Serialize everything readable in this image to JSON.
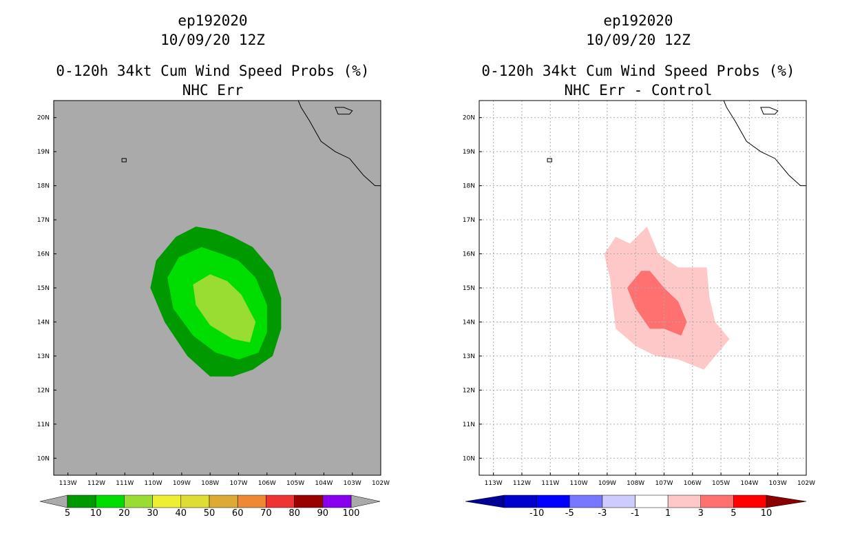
{
  "chart_data": [
    {
      "type": "contour_map",
      "title_lines": [
        "ep192020",
        "10/09/20 12Z",
        "0-120h 34kt Cum Wind Speed Probs (%)",
        "NHC Err"
      ],
      "x_ticks": [
        "113W",
        "112W",
        "111W",
        "110W",
        "109W",
        "108W",
        "107W",
        "106W",
        "105W",
        "104W",
        "103W",
        "102W"
      ],
      "y_ticks": [
        "20N",
        "19N",
        "18N",
        "17N",
        "16N",
        "15N",
        "14N",
        "13N",
        "12N",
        "11N",
        "10N"
      ],
      "xlim": [
        -113.5,
        -102.0
      ],
      "ylim": [
        9.5,
        20.5
      ],
      "background": "#aaaaaa",
      "grid": false,
      "colorbar": {
        "labels": [
          "5",
          "10",
          "20",
          "30",
          "40",
          "50",
          "60",
          "70",
          "80",
          "90",
          "100"
        ],
        "colors": [
          "#009900",
          "#00dd00",
          "#99dd33",
          "#eeee33",
          "#dddd33",
          "#ddaa33",
          "#ee8833",
          "#ee3333",
          "#990000",
          "#8800ee"
        ],
        "end_color": "#aaaaaa"
      },
      "contours": [
        {
          "level": "5-10",
          "color": "#009900",
          "points": [
            [
              -108.5,
              16.8
            ],
            [
              -107.8,
              16.7
            ],
            [
              -107.2,
              16.5
            ],
            [
              -106.5,
              16.2
            ],
            [
              -105.8,
              15.5
            ],
            [
              -105.5,
              14.7
            ],
            [
              -105.5,
              13.8
            ],
            [
              -105.8,
              13.0
            ],
            [
              -106.5,
              12.6
            ],
            [
              -107.2,
              12.4
            ],
            [
              -108.0,
              12.4
            ],
            [
              -108.8,
              13.0
            ],
            [
              -109.6,
              14.0
            ],
            [
              -110.1,
              15.0
            ],
            [
              -109.9,
              15.8
            ],
            [
              -109.2,
              16.5
            ]
          ]
        },
        {
          "level": "10-20",
          "color": "#00dd00",
          "points": [
            [
              -108.3,
              16.2
            ],
            [
              -107.6,
              16.0
            ],
            [
              -107.0,
              15.8
            ],
            [
              -106.4,
              15.3
            ],
            [
              -106.0,
              14.5
            ],
            [
              -106.0,
              13.7
            ],
            [
              -106.3,
              13.1
            ],
            [
              -107.0,
              12.9
            ],
            [
              -107.8,
              13.1
            ],
            [
              -108.6,
              13.6
            ],
            [
              -109.3,
              14.4
            ],
            [
              -109.5,
              15.3
            ],
            [
              -109.1,
              15.9
            ]
          ]
        },
        {
          "level": "20-30",
          "color": "#99dd33",
          "points": [
            [
              -108.0,
              15.4
            ],
            [
              -107.4,
              15.2
            ],
            [
              -106.9,
              14.8
            ],
            [
              -106.4,
              14.0
            ],
            [
              -106.6,
              13.4
            ],
            [
              -107.2,
              13.5
            ],
            [
              -108.0,
              13.9
            ],
            [
              -108.5,
              14.5
            ],
            [
              -108.6,
              15.1
            ]
          ]
        }
      ],
      "coastlines": [
        {
          "name": "mexico",
          "points": [
            [
              -104.9,
              20.5
            ],
            [
              -104.8,
              20.3
            ],
            [
              -104.5,
              19.9
            ],
            [
              -104.1,
              19.3
            ],
            [
              -103.6,
              19.0
            ],
            [
              -103.1,
              18.8
            ],
            [
              -102.6,
              18.3
            ],
            [
              -102.2,
              18.0
            ],
            [
              -102.0,
              18.0
            ]
          ]
        },
        {
          "name": "islas-marias",
          "points": [
            [
              -103.6,
              20.3
            ],
            [
              -103.3,
              20.3
            ],
            [
              -103.0,
              20.2
            ],
            [
              -103.1,
              20.1
            ],
            [
              -103.5,
              20.1
            ]
          ]
        },
        {
          "name": "socorro",
          "points": [
            [
              -111.1,
              18.8
            ],
            [
              -110.95,
              18.8
            ],
            [
              -110.95,
              18.7
            ],
            [
              -111.1,
              18.7
            ]
          ]
        }
      ]
    },
    {
      "type": "contour_map",
      "title_lines": [
        "ep192020",
        "10/09/20 12Z",
        "0-120h 34kt Cum Wind Speed Probs (%)",
        "NHC Err - Control"
      ],
      "x_ticks": [
        "113W",
        "112W",
        "111W",
        "110W",
        "109W",
        "108W",
        "107W",
        "106W",
        "105W",
        "104W",
        "103W",
        "102W"
      ],
      "y_ticks": [
        "20N",
        "19N",
        "18N",
        "17N",
        "16N",
        "15N",
        "14N",
        "13N",
        "12N",
        "11N",
        "10N"
      ],
      "xlim": [
        -113.5,
        -102.0
      ],
      "ylim": [
        9.5,
        20.5
      ],
      "background": "#ffffff",
      "grid": true,
      "colorbar": {
        "labels": [
          "-10",
          "-5",
          "-3",
          "-1",
          "1",
          "3",
          "5",
          "10"
        ],
        "colors": [
          "#0000cc",
          "#0000ff",
          "#7777ff",
          "#ccccff",
          "#ffffff",
          "#ffc8c8",
          "#ff7070",
          "#ff0000"
        ],
        "left_end_color": "#000099",
        "right_end_color": "#880000"
      },
      "contours": [
        {
          "level": "1-3",
          "color": "#ffc8c8",
          "points": [
            [
              -109.1,
              16.0
            ],
            [
              -108.7,
              16.5
            ],
            [
              -108.2,
              16.3
            ],
            [
              -107.6,
              16.8
            ],
            [
              -107.2,
              16.0
            ],
            [
              -106.5,
              15.6
            ],
            [
              -105.9,
              15.6
            ],
            [
              -105.5,
              15.6
            ],
            [
              -105.4,
              14.7
            ],
            [
              -105.2,
              14.0
            ],
            [
              -104.7,
              13.5
            ],
            [
              -105.6,
              12.6
            ],
            [
              -106.5,
              12.9
            ],
            [
              -107.3,
              13.0
            ],
            [
              -108.0,
              13.3
            ],
            [
              -108.7,
              13.8
            ],
            [
              -108.8,
              14.5
            ],
            [
              -108.9,
              15.3
            ],
            [
              -109.0,
              15.6
            ]
          ]
        },
        {
          "level": "3-5",
          "color": "#ff7070",
          "points": [
            [
              -107.5,
              15.5
            ],
            [
              -107.0,
              15.0
            ],
            [
              -106.5,
              14.6
            ],
            [
              -106.2,
              14.0
            ],
            [
              -106.4,
              13.6
            ],
            [
              -107.0,
              13.8
            ],
            [
              -107.5,
              13.8
            ],
            [
              -108.0,
              14.4
            ],
            [
              -108.3,
              15.0
            ],
            [
              -107.8,
              15.5
            ]
          ]
        }
      ],
      "coastlines": [
        {
          "name": "mexico",
          "points": [
            [
              -104.9,
              20.5
            ],
            [
              -104.8,
              20.3
            ],
            [
              -104.5,
              19.9
            ],
            [
              -104.1,
              19.3
            ],
            [
              -103.6,
              19.0
            ],
            [
              -103.1,
              18.8
            ],
            [
              -102.6,
              18.3
            ],
            [
              -102.2,
              18.0
            ],
            [
              -102.0,
              18.0
            ]
          ]
        },
        {
          "name": "islas-marias",
          "points": [
            [
              -103.6,
              20.3
            ],
            [
              -103.3,
              20.3
            ],
            [
              -103.0,
              20.2
            ],
            [
              -103.1,
              20.1
            ],
            [
              -103.5,
              20.1
            ]
          ]
        },
        {
          "name": "socorro",
          "points": [
            [
              -111.1,
              18.8
            ],
            [
              -110.95,
              18.8
            ],
            [
              -110.95,
              18.7
            ],
            [
              -111.1,
              18.7
            ]
          ]
        }
      ]
    }
  ]
}
